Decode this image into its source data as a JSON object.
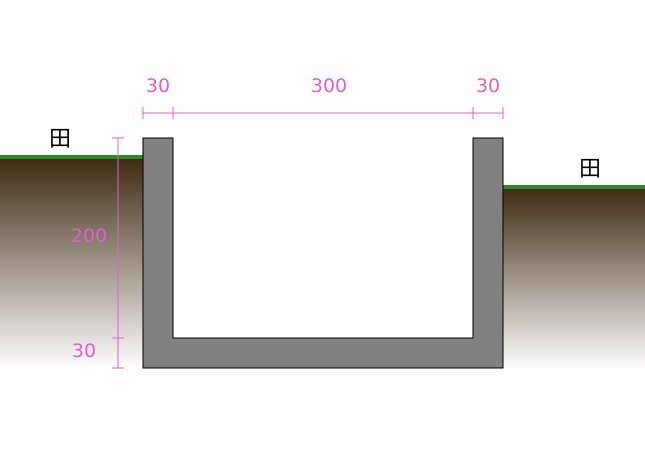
{
  "colors": {
    "dimension": "#e060d0",
    "concrete_fill": "#808080",
    "concrete_stroke": "#000000",
    "grass": "#2a8a2a",
    "soil_top": "#3f2a12",
    "soil_bottom": "#ffffff",
    "label": "#000000"
  },
  "labels": {
    "field_left": "田",
    "field_right": "田"
  },
  "dimensions": {
    "wall_left": "30",
    "inner_width": "300",
    "wall_right": "30",
    "inner_height": "200",
    "base_thickness": "30"
  }
}
